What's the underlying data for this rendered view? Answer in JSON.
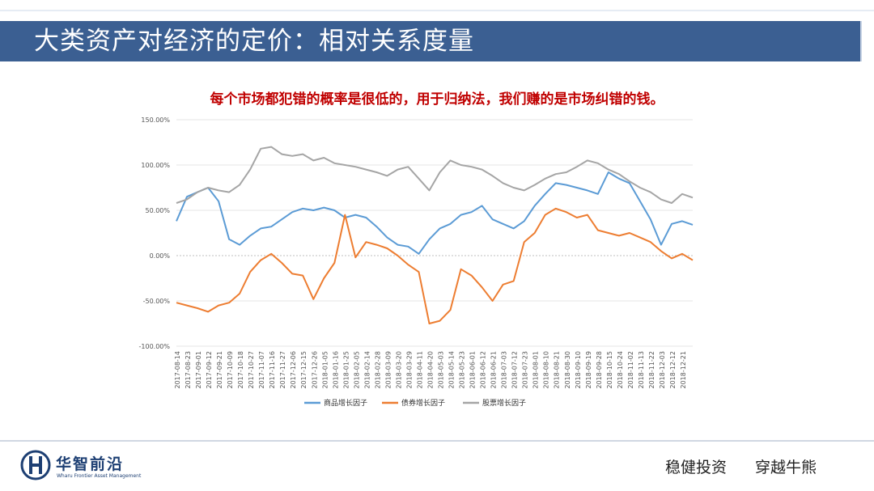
{
  "header": {
    "title": "大类资产对经济的定价：相对关系度量",
    "subtitle": "每个市场都犯错的概率是很低的，用于归纳法，我们赚的是市场纠错的钱。"
  },
  "footer": {
    "brand": "华智前沿",
    "brand_sub": "Wharu Frontier Asset Management",
    "slogan_1": "稳健投资",
    "slogan_2": "穿越牛熊"
  },
  "colors": {
    "header_bar": "#3b5f92",
    "commodity": "#5b9bd5",
    "bond": "#ed7d31",
    "equity": "#a5a5a5"
  },
  "chart_data": {
    "type": "line",
    "title": "",
    "xlabel": "",
    "ylabel": "",
    "ylim": [
      -1.0,
      1.5
    ],
    "y_ticks": [
      "150.00%",
      "100.00%",
      "50.00%",
      "0.00%",
      "-50.00%",
      "-100.00%"
    ],
    "y_tick_values": [
      1.5,
      1.0,
      0.5,
      0.0,
      -0.5,
      -1.0
    ],
    "grid": true,
    "legend": "bottom",
    "x": [
      "2017-08-14",
      "2017-08-23",
      "2017-09-01",
      "2017-09-12",
      "2017-09-21",
      "2017-10-09",
      "2017-10-18",
      "2017-10-27",
      "2017-11-07",
      "2017-11-16",
      "2017-11-27",
      "2017-12-06",
      "2017-12-15",
      "2017-12-26",
      "2018-01-05",
      "2018-01-16",
      "2018-01-25",
      "2018-02-05",
      "2018-02-14",
      "2018-02-28",
      "2018-03-09",
      "2018-03-20",
      "2018-03-29",
      "2018-04-11",
      "2018-04-20",
      "2018-05-03",
      "2018-05-14",
      "2018-05-23",
      "2018-06-01",
      "2018-06-12",
      "2018-06-21",
      "2018-07-03",
      "2018-07-12",
      "2018-07-23",
      "2018-08-01",
      "2018-08-10",
      "2018-08-21",
      "2018-08-30",
      "2018-09-10",
      "2018-09-19",
      "2018-09-28",
      "2018-10-15",
      "2018-10-24",
      "2018-11-02",
      "2018-11-13",
      "2018-11-22",
      "2018-12-03",
      "2018-12-12",
      "2018-12-21",
      "2018-12-28"
    ],
    "x_tick_labels": [
      "2017-08-14",
      "2017-08-23",
      "2017-09-01",
      "2017-09-12",
      "2017-09-21",
      "2017-10-09",
      "2017-10-18",
      "2017-10-27",
      "2017-11-07",
      "2017-11-16",
      "2017-11-27",
      "2017-12-06",
      "2017-12-15",
      "2017-12-26",
      "2018-01-05",
      "2018-01-16",
      "2018-01-25",
      "2018-02-05",
      "2018-02-14",
      "2018-02-28",
      "2018-03-09",
      "2018-03-20",
      "2018-03-29",
      "2018-04-11",
      "2018-04-20",
      "2018-05-03",
      "2018-05-14",
      "2018-05-23",
      "2018-06-01",
      "2018-06-12",
      "2018-06-21",
      "2018-07-03",
      "2018-07-12",
      "2018-07-23",
      "2018-08-01",
      "2018-08-10",
      "2018-08-21",
      "2018-08-30",
      "2018-09-10",
      "2018-09-19",
      "2018-09-28",
      "2018-10-15",
      "2018-10-24",
      "2018-11-02",
      "2018-11-13",
      "2018-11-22",
      "2018-12-03",
      "2018-12-12",
      "2018-12-21"
    ],
    "series": [
      {
        "name": "商品增长因子",
        "values": [
          0.38,
          0.65,
          0.7,
          0.75,
          0.6,
          0.18,
          0.12,
          0.22,
          0.3,
          0.32,
          0.4,
          0.48,
          0.52,
          0.5,
          0.53,
          0.5,
          0.42,
          0.45,
          0.42,
          0.32,
          0.2,
          0.12,
          0.1,
          0.02,
          0.18,
          0.3,
          0.35,
          0.45,
          0.48,
          0.55,
          0.4,
          0.35,
          0.3,
          0.38,
          0.55,
          0.68,
          0.8,
          0.78,
          0.75,
          0.72,
          0.68,
          0.92,
          0.85,
          0.8,
          0.6,
          0.4,
          0.12,
          0.35,
          0.38,
          0.34
        ]
      },
      {
        "name": "债券增长因子",
        "values": [
          -0.52,
          -0.55,
          -0.58,
          -0.62,
          -0.55,
          -0.52,
          -0.42,
          -0.18,
          -0.05,
          0.02,
          -0.08,
          -0.2,
          -0.22,
          -0.48,
          -0.25,
          -0.08,
          0.45,
          -0.02,
          0.15,
          0.12,
          0.08,
          0.0,
          -0.1,
          -0.18,
          -0.75,
          -0.72,
          -0.6,
          -0.15,
          -0.22,
          -0.35,
          -0.5,
          -0.32,
          -0.28,
          0.15,
          0.25,
          0.45,
          0.52,
          0.48,
          0.42,
          0.45,
          0.28,
          0.25,
          0.22,
          0.25,
          0.2,
          0.15,
          0.05,
          -0.03,
          0.02,
          -0.05
        ]
      },
      {
        "name": "股票增长因子",
        "values": [
          0.58,
          0.62,
          0.7,
          0.75,
          0.72,
          0.7,
          0.78,
          0.95,
          1.18,
          1.2,
          1.12,
          1.1,
          1.12,
          1.05,
          1.08,
          1.02,
          1.0,
          0.98,
          0.95,
          0.92,
          0.88,
          0.95,
          0.98,
          0.85,
          0.72,
          0.92,
          1.05,
          1.0,
          0.98,
          0.95,
          0.88,
          0.8,
          0.75,
          0.72,
          0.78,
          0.85,
          0.9,
          0.92,
          0.98,
          1.05,
          1.02,
          0.95,
          0.9,
          0.82,
          0.75,
          0.7,
          0.62,
          0.58,
          0.68,
          0.64
        ]
      }
    ]
  }
}
